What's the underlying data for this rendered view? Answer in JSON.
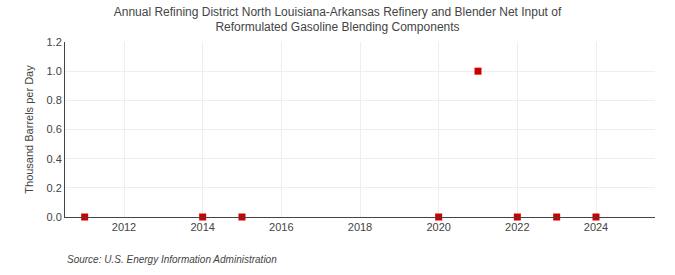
{
  "chart_data": {
    "type": "scatter",
    "title": "Annual Refining District North Louisiana-Arkansas Refinery and Blender Net Input of\nReformulated Gasoline Blending Components",
    "ylabel": "Thousand Barrels per Day",
    "source": "Source: U.S. Energy Information Administration",
    "x": [
      2011,
      2014,
      2015,
      2020,
      2021,
      2022,
      2023,
      2024
    ],
    "values": [
      0.0,
      0.0,
      0.0,
      0.0,
      1.0,
      0.0,
      0.0,
      0.0
    ],
    "color": "#cc0000",
    "marker": "square",
    "xlim": [
      2010.5,
      2025.5
    ],
    "ylim": [
      0.0,
      1.2
    ],
    "xticks": [
      2012,
      2014,
      2016,
      2018,
      2020,
      2022,
      2024
    ],
    "yticks": [
      {
        "value": 0.0,
        "label": "0.0"
      },
      {
        "value": 0.2,
        "label": "0.2"
      },
      {
        "value": 0.4,
        "label": "0.4"
      },
      {
        "value": 0.6,
        "label": "0.6"
      },
      {
        "value": 0.8,
        "label": "0.8"
      },
      {
        "value": 1.0,
        "label": "1.0"
      },
      {
        "value": 1.2,
        "label": "1.2"
      }
    ],
    "grid": true
  }
}
